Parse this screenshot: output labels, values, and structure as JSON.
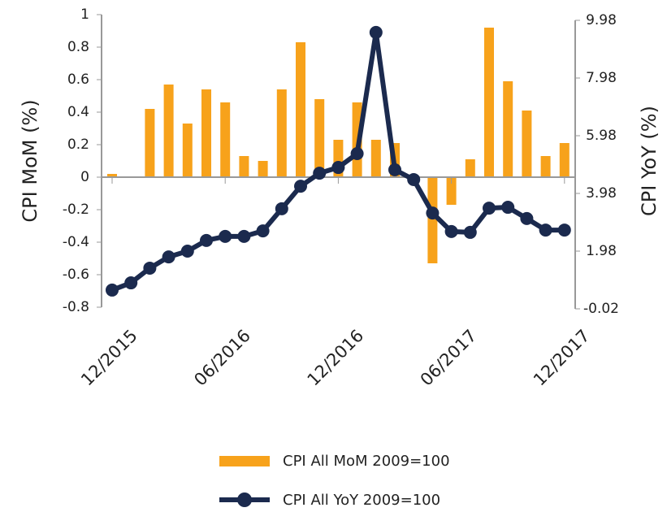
{
  "chart_data": {
    "type": "bar_line",
    "categories": [
      "12/2015",
      null,
      null,
      null,
      null,
      null,
      "06/2016",
      null,
      null,
      null,
      null,
      null,
      "12/2016",
      null,
      null,
      null,
      null,
      null,
      "06/2017",
      null,
      null,
      null,
      null,
      null,
      "12/2017"
    ],
    "series": [
      {
        "name": "CPI All MoM 2009=100",
        "color": "#f7a21b",
        "type": "bar",
        "values": [
          0.02,
          0,
          0.42,
          0.57,
          0.33,
          0.54,
          0.46,
          0.13,
          0.1,
          0.54,
          0.83,
          0.48,
          0.23,
          0.46,
          0.23,
          0.21,
          0,
          -0.53,
          -0.17,
          0.11,
          0.92,
          0.59,
          0.41,
          0.13,
          0.21
        ]
      },
      {
        "name": "CPI All YoY 2009=100",
        "color": "#1b2a4e",
        "type": "line",
        "axis": "y2",
        "values": [
          0.63,
          0.88,
          1.39,
          1.78,
          1.98,
          2.35,
          2.49,
          2.49,
          2.68,
          3.45,
          4.23,
          4.68,
          4.88,
          5.36,
          9.56,
          4.8,
          4.46,
          3.3,
          2.66,
          2.63,
          3.47,
          3.5,
          3.11,
          2.71,
          2.71
        ]
      }
    ],
    "ylabel": "CPI MoM (%)",
    "y2label": "CPI YoY (%)",
    "ylim": [
      -0.8,
      1
    ],
    "yticks": [
      1,
      0.8,
      0.6,
      0.4,
      0.2,
      0,
      -0.2,
      -0.4,
      -0.6,
      -0.8
    ],
    "y2lim": [
      -0.02,
      9.98
    ],
    "y2ticks": [
      9.98,
      7.98,
      5.98,
      3.98,
      1.98,
      -0.02
    ],
    "legend": "bottom"
  }
}
